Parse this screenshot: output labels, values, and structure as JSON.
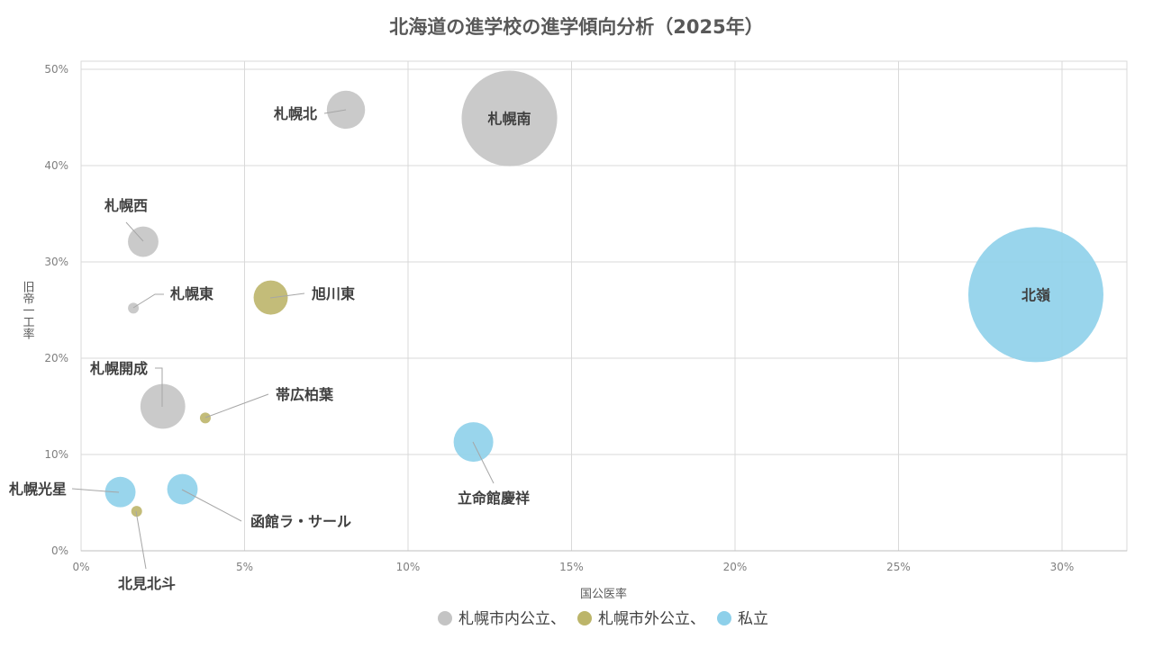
{
  "chart_data": {
    "type": "bubble",
    "title": "北海道の進学校の進学傾向分析（2025年）",
    "xlabel": "国公医率",
    "ylabel": "旧帝一工率",
    "xlim": [
      0,
      32
    ],
    "ylim": [
      0,
      51
    ],
    "xticks": [
      "0%",
      "5%",
      "10%",
      "15%",
      "20%",
      "25%",
      "30%"
    ],
    "yticks": [
      "0%",
      "10%",
      "20%",
      "30%",
      "40%",
      "50%"
    ],
    "grid": true,
    "legend_position": "bottom",
    "legend_text": [
      "札幌市内公立、",
      "札幌市外公立、",
      "私立"
    ],
    "series": [
      {
        "name": "札幌市内公立",
        "color": "#c4c4c4",
        "points": [
          {
            "label": "札幌北",
            "x": 8.1,
            "y": 45.8,
            "size": 8
          },
          {
            "label": "札幌南",
            "x": 13.1,
            "y": 44.9,
            "size": 50
          },
          {
            "label": "札幌西",
            "x": 1.9,
            "y": 32.1,
            "size": 5.1
          },
          {
            "label": "札幌東",
            "x": 1.6,
            "y": 25.2,
            "size": 0.6
          },
          {
            "label": "札幌開成",
            "x": 2.5,
            "y": 15.0,
            "size": 11
          }
        ]
      },
      {
        "name": "札幌市外公立",
        "color": "#bcb56a",
        "points": [
          {
            "label": "旭川東",
            "x": 5.8,
            "y": 26.3,
            "size": 6.4
          },
          {
            "label": "帯広柏葉",
            "x": 3.8,
            "y": 13.8,
            "size": 0.6
          },
          {
            "label": "北見北斗",
            "x": 1.7,
            "y": 4.1,
            "size": 0.6
          }
        ]
      },
      {
        "name": "私立",
        "color": "#8ed0ea",
        "points": [
          {
            "label": "北嶺",
            "x": 29.2,
            "y": 26.6,
            "size": 100
          },
          {
            "label": "立命館慶祥",
            "x": 12.0,
            "y": 11.3,
            "size": 8.6
          },
          {
            "label": "札幌光星",
            "x": 1.2,
            "y": 6.1,
            "size": 5.1
          },
          {
            "label": "函館ラ・サール",
            "x": 3.1,
            "y": 6.4,
            "size": 5.1
          }
        ]
      }
    ]
  }
}
